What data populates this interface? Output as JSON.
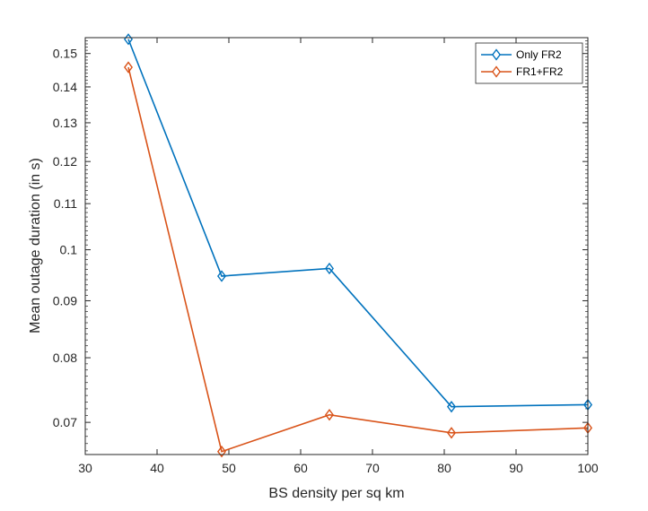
{
  "chart_data": {
    "type": "line",
    "xlabel": "BS density per sq km",
    "ylabel": "Mean outage duration (in s)",
    "xlim": [
      30,
      100
    ],
    "ylim": [
      0.0655,
      0.155
    ],
    "y_scale": "log",
    "x_ticks": [
      30,
      40,
      50,
      60,
      70,
      80,
      90,
      100
    ],
    "y_ticks": [
      0.07,
      0.08,
      0.09,
      0.1,
      0.11,
      0.12,
      0.13,
      0.14,
      0.15
    ],
    "y_tick_labels": [
      "0.07",
      "0.08",
      "0.09",
      "0.1",
      "0.11",
      "0.12",
      "0.13",
      "0.14",
      "0.15"
    ],
    "x": [
      36,
      49,
      64,
      81,
      100
    ],
    "grid": false,
    "box": true,
    "legend_location": "top-right",
    "marker": "diamond",
    "series": [
      {
        "name": "Only FR2",
        "color": "#0072BD",
        "values": [
          0.1545,
          0.0947,
          0.0962,
          0.0723,
          0.0726
        ]
      },
      {
        "name": "FR1+FR2",
        "color": "#D95319",
        "values": [
          0.1458,
          0.0659,
          0.0711,
          0.0685,
          0.0692
        ]
      }
    ]
  }
}
